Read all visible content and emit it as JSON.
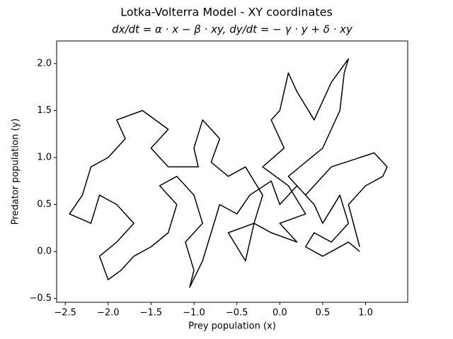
{
  "chart_data": {
    "type": "line",
    "title": "Lotka-Volterra Model - XY coordinates",
    "subtitle": "dx/dt = α · x − β · xy,     dy/dt = − γ · y + δ · xy",
    "x_label": "Prey population (x)",
    "y_label": "Predator population (y)",
    "color": "#000000",
    "xlim": [
      -2.6,
      1.49
    ],
    "ylim": [
      -0.54,
      2.24
    ],
    "xticks": [
      {
        "value": -2.5,
        "label": "−2.5"
      },
      {
        "value": -2.0,
        "label": "−2.0"
      },
      {
        "value": -1.5,
        "label": "−1.5"
      },
      {
        "value": -1.0,
        "label": "−1.0"
      },
      {
        "value": -0.5,
        "label": "−0.5"
      },
      {
        "value": 0,
        "label": "0.0"
      },
      0.5,
      {
        "value": 1,
        "label": "1.0"
      }
    ],
    "yticks": [
      {
        "value": -0.5,
        "label": "−0.5"
      },
      {
        "value": 0,
        "label": "0.0"
      },
      0.5,
      {
        "value": 1,
        "label": "1.0"
      },
      1.5,
      {
        "value": 2,
        "label": "2.0"
      }
    ],
    "x": [
      0.93,
      0.8,
      1.0,
      1.2,
      1.25,
      1.1,
      0.6,
      0.3,
      0.1,
      0.5,
      0.7,
      0.75,
      0.8,
      0.6,
      0.4,
      0.2,
      0.1,
      0.0,
      -0.1,
      0.05,
      -0.2,
      0.1,
      0.3,
      0.0,
      0.2,
      -0.1,
      -0.3,
      -0.6,
      -0.5,
      -0.4,
      -0.3,
      -0.2,
      -0.4,
      -0.6,
      -0.8,
      -0.7,
      -0.9,
      -1.0,
      -0.95,
      -1.1,
      -1.3,
      -1.5,
      -1.3,
      -1.6,
      -1.9,
      -1.8,
      -2.0,
      -2.2,
      -2.3,
      -2.45,
      -2.2,
      -2.1,
      -1.9,
      -1.7,
      -1.9,
      -2.1,
      -2.0,
      -1.85,
      -1.7,
      -1.5,
      -1.3,
      -1.2,
      -1.4,
      -1.2,
      -1.0,
      -0.9,
      -1.1,
      -1.0,
      -1.05,
      -0.9,
      -0.8,
      -0.7,
      -0.5,
      -0.35,
      -0.1,
      0.0,
      0.2,
      0.4,
      0.5,
      0.7,
      0.8,
      0.6,
      0.4,
      0.3,
      0.5,
      0.8,
      0.93
    ],
    "y": [
      0.05,
      0.5,
      0.7,
      0.8,
      0.9,
      1.05,
      0.9,
      0.6,
      0.8,
      1.1,
      1.5,
      1.9,
      2.05,
      1.8,
      1.4,
      1.7,
      1.9,
      1.5,
      1.4,
      1.1,
      0.9,
      0.7,
      0.4,
      0.3,
      0.1,
      0.2,
      0.3,
      0.2,
      0.05,
      -0.1,
      0.3,
      0.6,
      0.9,
      0.8,
      0.95,
      1.2,
      1.4,
      1.1,
      0.9,
      0.9,
      0.9,
      1.1,
      1.3,
      1.5,
      1.4,
      1.2,
      1.0,
      0.9,
      0.6,
      0.4,
      0.3,
      0.6,
      0.5,
      0.3,
      0.1,
      -0.05,
      -0.3,
      -0.2,
      -0.05,
      0.05,
      0.2,
      0.5,
      0.7,
      0.8,
      0.6,
      0.3,
      0.1,
      -0.2,
      -0.38,
      -0.1,
      0.2,
      0.5,
      0.4,
      0.6,
      0.75,
      0.5,
      0.7,
      0.5,
      0.3,
      0.6,
      0.3,
      0.1,
      0.2,
      0.05,
      -0.05,
      0.1,
      0.0
    ]
  }
}
